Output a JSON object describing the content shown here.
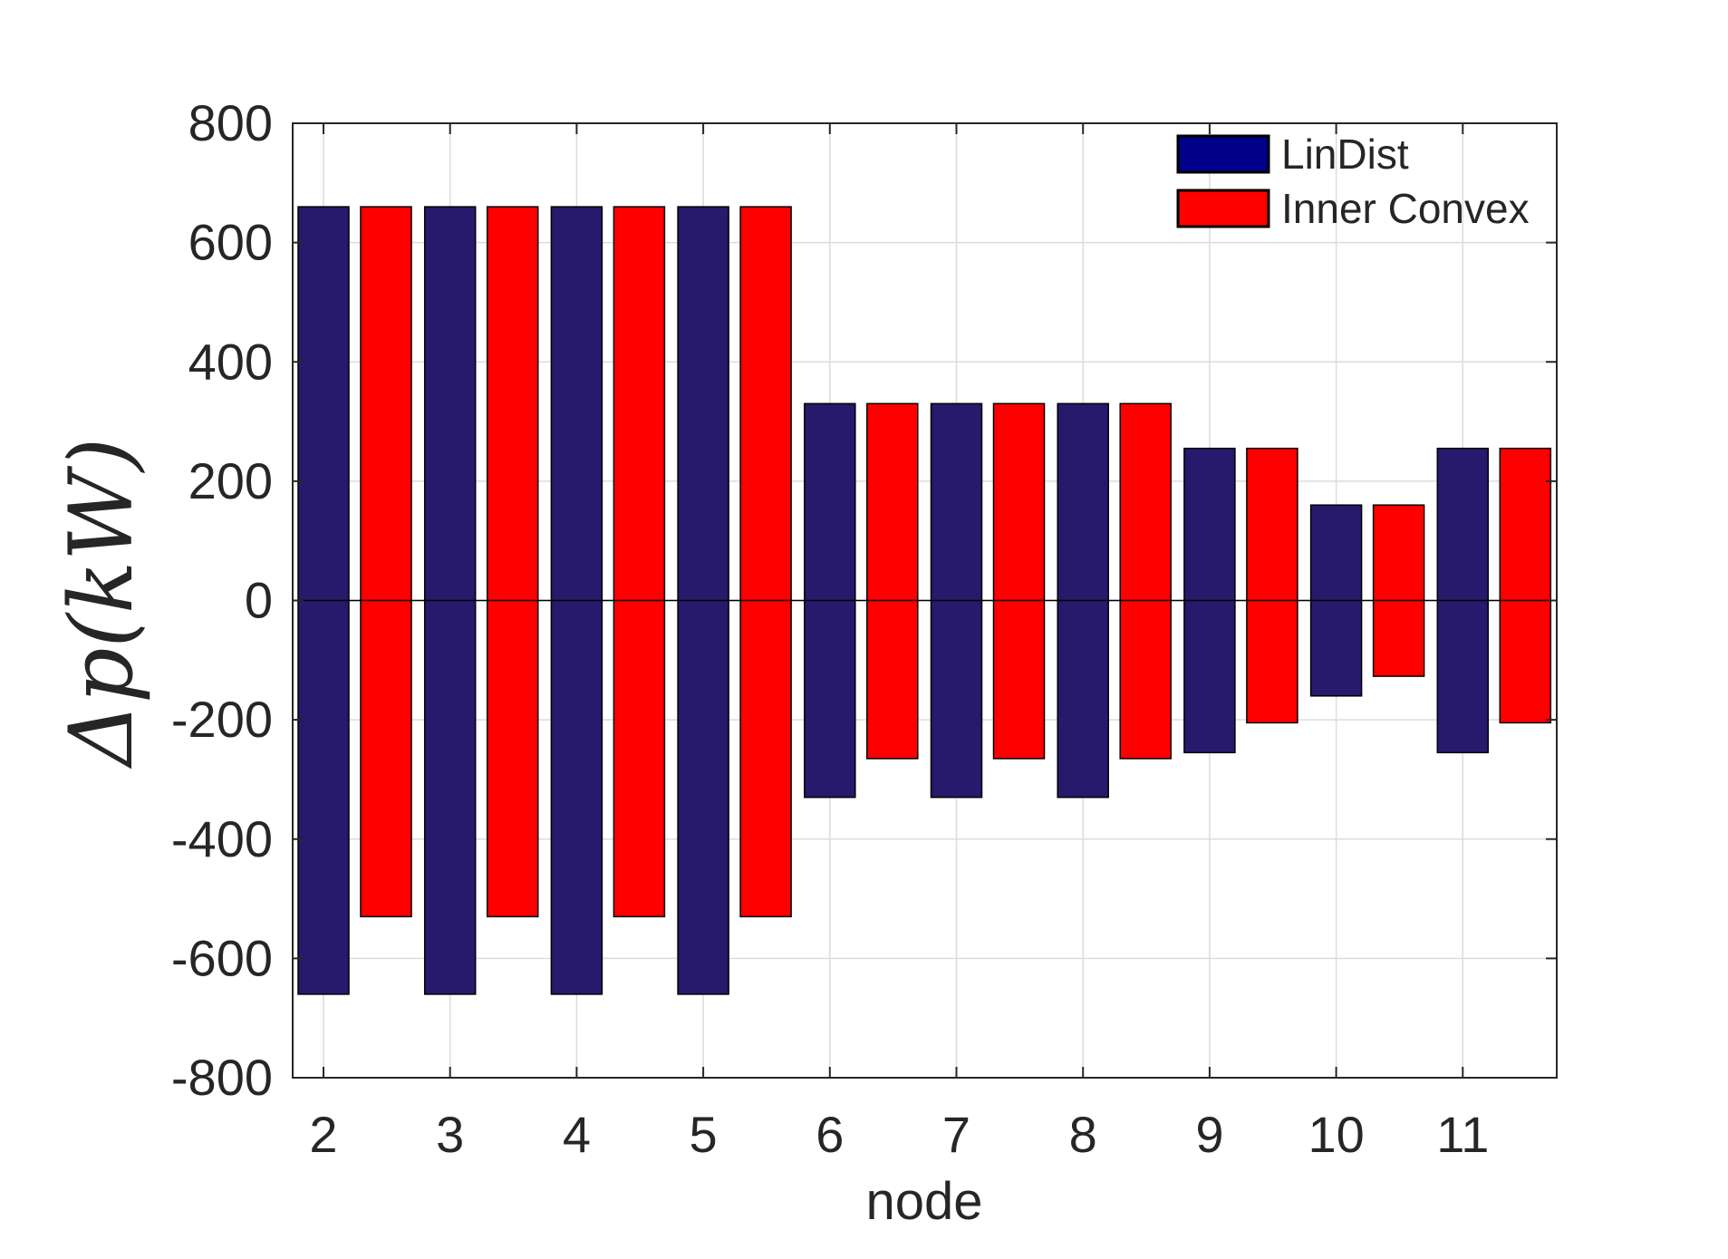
{
  "chart_data": {
    "type": "bar",
    "subtype": "floating-range",
    "title": "",
    "xlabel": "node",
    "ylabel": "Δp(kW)",
    "ylim": [
      -800,
      800
    ],
    "yticks": [
      "-800",
      "-600",
      "-400",
      "-200",
      "0",
      "200",
      "400",
      "600",
      "800"
    ],
    "categories": [
      "2",
      "3",
      "4",
      "5",
      "6",
      "7",
      "8",
      "9",
      "10",
      "11"
    ],
    "grid": true,
    "legend_position": "top-right",
    "series": [
      {
        "name": "LinDist",
        "color": "#27196b",
        "legend_color": "#00008b",
        "upper": [
          660,
          660,
          660,
          660,
          330,
          330,
          330,
          255,
          160,
          255
        ],
        "lower": [
          -660,
          -660,
          -660,
          -660,
          -330,
          -330,
          -330,
          -255,
          -160,
          -255
        ]
      },
      {
        "name": "Inner Convex",
        "color": "#ff0000",
        "legend_color": "#ff0000",
        "upper": [
          660,
          660,
          660,
          660,
          330,
          330,
          330,
          255,
          160,
          255
        ],
        "lower": [
          -530,
          -530,
          -530,
          -530,
          -265,
          -265,
          -265,
          -205,
          -127,
          -205
        ]
      }
    ]
  }
}
